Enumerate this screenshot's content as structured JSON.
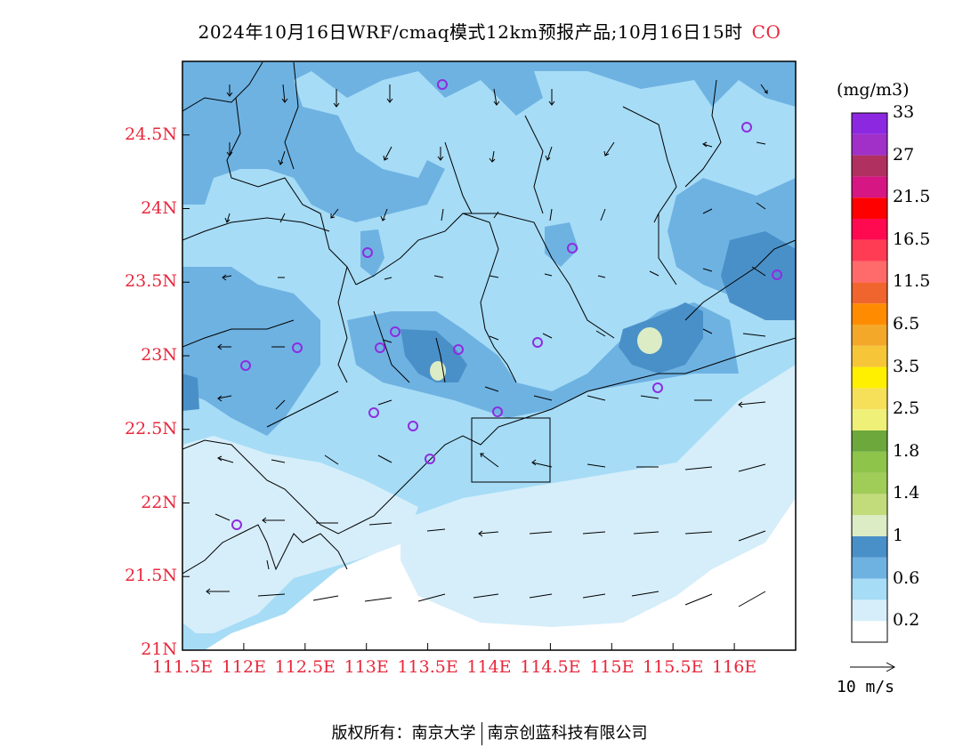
{
  "title": {
    "main": "2024年10月16日WRF/cmaq模式12km预报产品;10月16日15时",
    "species": "CO"
  },
  "map": {
    "lat_labels": [
      "24.5N",
      "24N",
      "23.5N",
      "23N",
      "22.5N",
      "22N",
      "21.5N",
      "21N"
    ],
    "lon_labels": [
      "111.5E",
      "112E",
      "112.5E",
      "113E",
      "113.5E",
      "114E",
      "114.5E",
      "115E",
      "115.5E",
      "116E"
    ],
    "lon_range": [
      111.5,
      116.5
    ],
    "lat_range": [
      21,
      25
    ]
  },
  "legend": {
    "unit": "(mg/m3)",
    "colors": [
      "#ffffff",
      "#d6eefa",
      "#a6dcf6",
      "#6eb2e2",
      "#4a90c8",
      "#dcecc4",
      "#c2dc7c",
      "#a0cc58",
      "#8ec44a",
      "#6ca83c",
      "#eef078",
      "#f6e05a",
      "#fff000",
      "#f6c638",
      "#f4a82a",
      "#ff8c00",
      "#f0642e",
      "#ff6a6a",
      "#ff3c54",
      "#ff0a50",
      "#ff0000",
      "#d61682",
      "#b03060",
      "#a030c8",
      "#8c28e0"
    ],
    "labels": [
      "0.2",
      "0.6",
      "1",
      "1.4",
      "1.8",
      "2.5",
      "3.5",
      "6.5",
      "11.5",
      "16.5",
      "21.5",
      "27",
      "33"
    ]
  },
  "wind_reference": "10 m/s",
  "footer": {
    "left": "版权所有：南京大学",
    "right": "南京创蓝科技有限公司"
  }
}
